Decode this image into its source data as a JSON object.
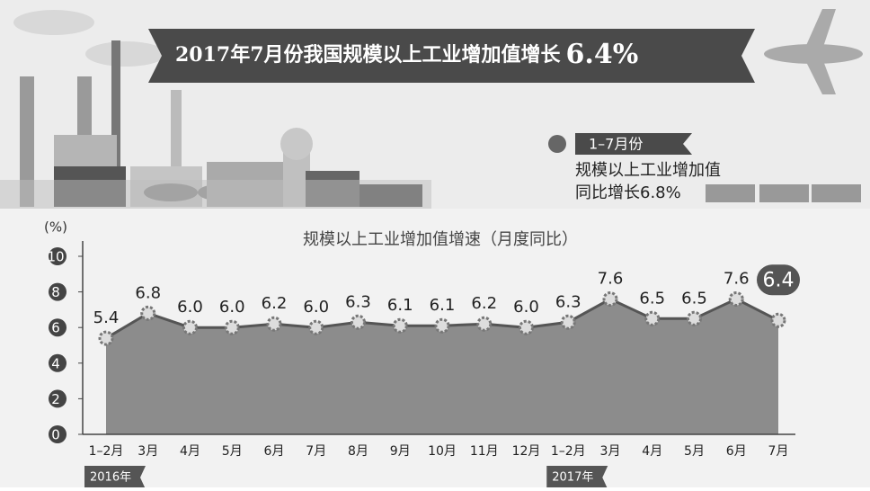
{
  "header": {
    "title": "2017年7月份我国规模以上工业增加值增长",
    "highlight": "6.4%"
  },
  "summary": {
    "tag": "1–7月份",
    "line1": "规模以上工业增加值",
    "line2": "同比增长6.8%"
  },
  "chart_data": {
    "type": "area",
    "title": "规模以上工业增加值增速（月度同比）",
    "y_unit": "(%)",
    "categories": [
      "1–2月",
      "3月",
      "4月",
      "5月",
      "6月",
      "7月",
      "8月",
      "9月",
      "10月",
      "11月",
      "12月",
      "1–2月",
      "3月",
      "4月",
      "5月",
      "6月",
      "7月"
    ],
    "values": [
      5.4,
      6.8,
      6.0,
      6.0,
      6.2,
      6.0,
      6.3,
      6.1,
      6.1,
      6.2,
      6.0,
      6.3,
      7.6,
      6.5,
      6.5,
      7.6,
      6.4
    ],
    "value_labels": [
      "5.4",
      "6.8",
      "6.0",
      "6.0",
      "6.2",
      "6.0",
      "6.3",
      "6.1",
      "6.1",
      "6.2",
      "6.0",
      "6.3",
      "7.6",
      "6.5",
      "6.5",
      "7.6",
      "6.4"
    ],
    "year_labels": [
      "2016年",
      "2017年"
    ],
    "color": "#8c8c8c",
    "line_color": "#555555",
    "ylim": [
      0,
      10
    ],
    "yticks": [
      0,
      2,
      4,
      6,
      8,
      10
    ]
  }
}
